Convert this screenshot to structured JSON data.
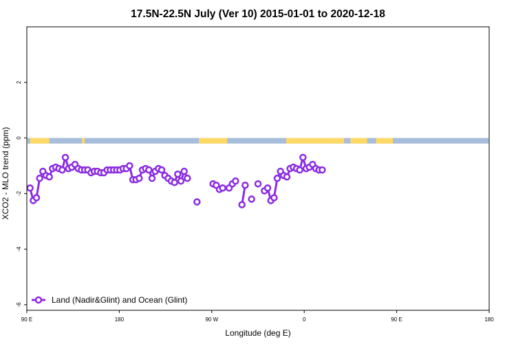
{
  "chart_data": {
    "type": "line",
    "title": "17.5N-22.5N July (Ver 10)   2015-01-01 to 2020-12-18",
    "xlabel": "Longitude (deg E)",
    "ylabel": "XCO2 - MLO trend (ppm)",
    "xlim": [
      90,
      450
    ],
    "ylim": [
      -6.2,
      4.0
    ],
    "x_ticks": [
      {
        "value": 90,
        "label": "90 E"
      },
      {
        "value": 180,
        "label": "180"
      },
      {
        "value": 270,
        "label": "90 W"
      },
      {
        "value": 360,
        "label": "0"
      },
      {
        "value": 450,
        "label": "90 E"
      },
      {
        "value": 540,
        "label": "180"
      }
    ],
    "x_ticks_display": [
      90,
      162,
      234,
      306,
      378,
      450
    ],
    "y_ticks": [
      {
        "value": 2,
        "label": "2"
      },
      {
        "value": 0,
        "label": "0"
      },
      {
        "value": -2,
        "label": "-2"
      },
      {
        "value": -4,
        "label": "-4"
      },
      {
        "value": -6,
        "label": "-6"
      }
    ],
    "grid": false,
    "legend_position": "bottom-left",
    "land_ocean_strip": {
      "ocean_color": "#a6bddb",
      "land_color": "#ffd966",
      "land_segments": [
        [
          92.5,
          107.5
        ],
        [
          133,
          135
        ],
        [
          224,
          226
        ],
        [
          226,
          246
        ],
        [
          292,
          337
        ],
        [
          342,
          355
        ],
        [
          362,
          375
        ]
      ]
    },
    "series": [
      {
        "name": "Land (Nadir&Glint) and Ocean (Glint)",
        "color": "#8a2be2",
        "segments": [
          [
            [
              92.5,
              -1.8
            ],
            [
              95,
              -2.25
            ],
            [
              97.5,
              -2.15
            ],
            [
              100,
              -1.45
            ],
            [
              102.5,
              -1.2
            ],
            [
              105,
              -1.35
            ],
            [
              107.5,
              -1.4
            ],
            [
              110,
              -1.1
            ],
            [
              112.5,
              -1.05
            ],
            [
              115,
              -1.1
            ],
            [
              117.5,
              -1.15
            ],
            [
              120,
              -0.7
            ],
            [
              122.5,
              -1.1
            ],
            [
              125,
              -1.05
            ],
            [
              127.5,
              -0.95
            ],
            [
              130,
              -1.1
            ],
            [
              132.5,
              -1.15
            ],
            [
              135,
              -1.15
            ],
            [
              137.5,
              -1.15
            ],
            [
              140,
              -1.25
            ],
            [
              142.5,
              -1.2
            ],
            [
              145,
              -1.2
            ],
            [
              147.5,
              -1.25
            ],
            [
              150,
              -1.25
            ],
            [
              152.5,
              -1.15
            ],
            [
              155,
              -1.15
            ],
            [
              157.5,
              -1.15
            ],
            [
              160,
              -1.15
            ],
            [
              162.5,
              -1.15
            ],
            [
              165,
              -1.1
            ],
            [
              167.5,
              -1.1
            ],
            [
              170,
              -1.0
            ],
            [
              172.5,
              -1.5
            ],
            [
              175,
              -1.5
            ],
            [
              177.5,
              -1.45
            ],
            [
              180,
              -1.15
            ],
            [
              182.5,
              -1.1
            ],
            [
              185,
              -1.15
            ],
            [
              187.5,
              -1.45
            ],
            [
              190,
              -1.2
            ],
            [
              192.5,
              -1.1
            ],
            [
              195,
              -1.15
            ],
            [
              197.5,
              -1.35
            ],
            [
              200,
              -1.45
            ],
            [
              202.5,
              -1.55
            ],
            [
              205,
              -1.6
            ],
            [
              207.5,
              -1.3
            ],
            [
              210,
              -1.55
            ],
            [
              212.5,
              -1.2
            ],
            [
              215,
              -1.45
            ]
          ],
          [
            [
              222.5,
              -2.3
            ]
          ],
          [
            [
              235,
              -1.65
            ],
            [
              237.5,
              -1.7
            ],
            [
              240,
              -1.85
            ],
            [
              242.5,
              -1.8
            ]
          ],
          [
            [
              247.5,
              -1.8
            ],
            [
              250,
              -1.65
            ],
            [
              252.5,
              -1.55
            ]
          ],
          [
            [
              257.5,
              -2.4
            ],
            [
              260,
              -1.7
            ]
          ],
          [
            [
              265,
              -2.2
            ]
          ],
          [
            [
              270,
              -1.65
            ]
          ],
          [
            [
              275,
              -1.9
            ],
            [
              277.5,
              -1.8
            ],
            [
              280,
              -2.25
            ],
            [
              282.5,
              -2.15
            ],
            [
              285,
              -1.45
            ],
            [
              287.5,
              -1.2
            ],
            [
              290,
              -1.35
            ],
            [
              292.5,
              -1.4
            ],
            [
              295,
              -1.1
            ],
            [
              297.5,
              -1.05
            ],
            [
              300,
              -1.1
            ],
            [
              302.5,
              -1.15
            ],
            [
              305,
              -0.7
            ],
            [
              307.5,
              -1.1
            ],
            [
              310,
              -1.05
            ],
            [
              312.5,
              -0.95
            ],
            [
              315,
              -1.1
            ],
            [
              317.5,
              -1.15
            ],
            [
              320,
              -1.15
            ]
          ]
        ]
      }
    ]
  }
}
